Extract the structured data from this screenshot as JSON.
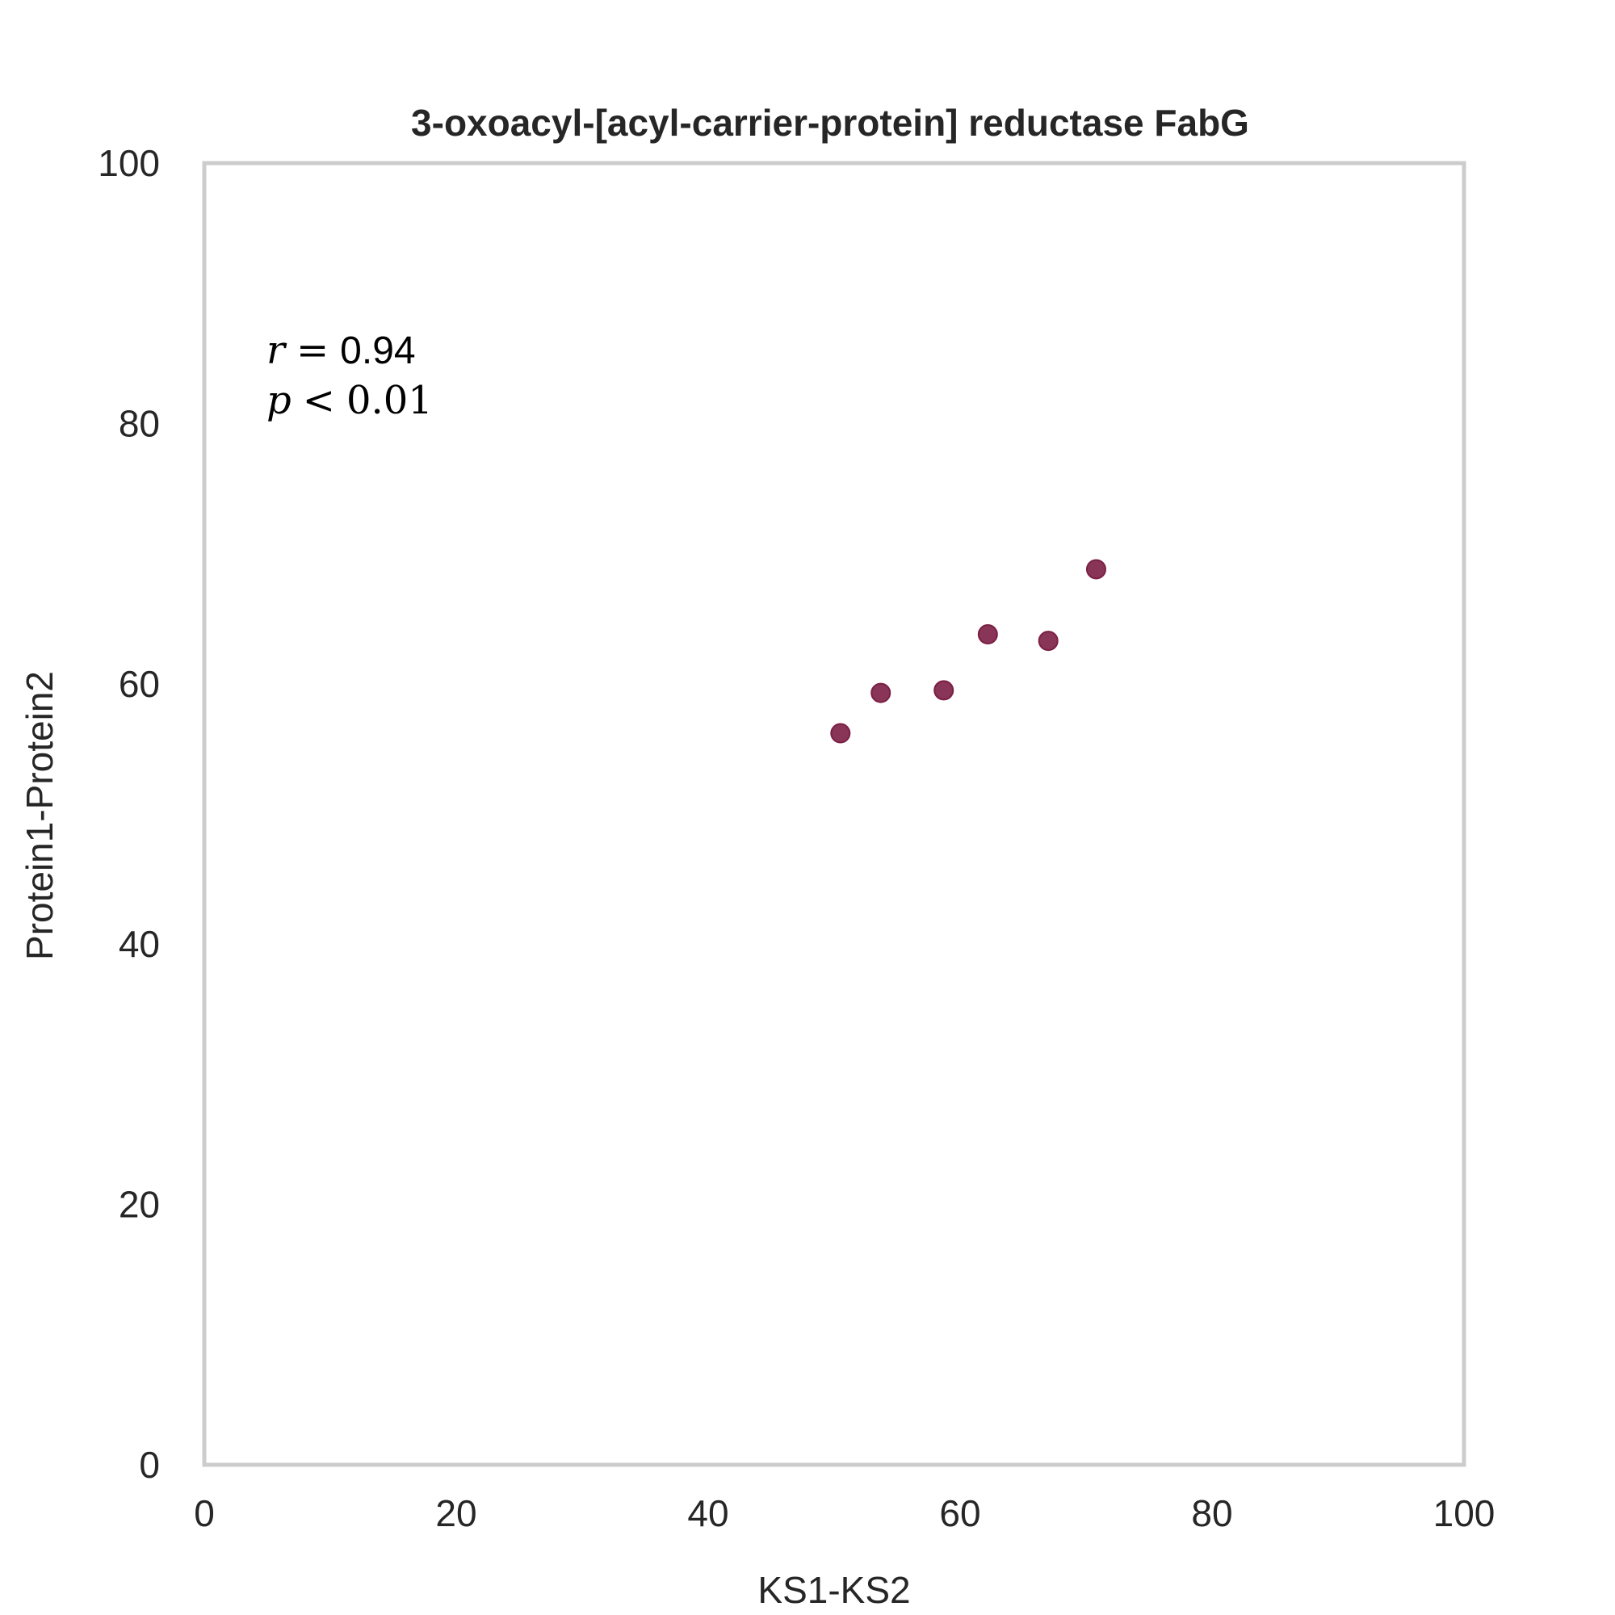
{
  "chart_data": {
    "type": "scatter",
    "title": "3-oxoacyl-[acyl-carrier-protein] reductase FabG",
    "xlabel": "KS1-KS2",
    "ylabel": "Protein1-Protein2",
    "xlim": [
      0,
      100
    ],
    "ylim": [
      0,
      100
    ],
    "xticks": [
      "0",
      "20",
      "40",
      "60",
      "80",
      "100"
    ],
    "yticks": [
      "0",
      "20",
      "40",
      "60",
      "80",
      "100"
    ],
    "grid": false,
    "point_color": "#7b1f45",
    "frame_color": "#cccccc",
    "points": [
      {
        "x": 50.5,
        "y": 56.2
      },
      {
        "x": 53.7,
        "y": 59.3
      },
      {
        "x": 58.7,
        "y": 59.5
      },
      {
        "x": 62.2,
        "y": 63.8
      },
      {
        "x": 67.0,
        "y": 63.3
      },
      {
        "x": 70.8,
        "y": 68.8
      }
    ],
    "annotations": {
      "r_symbol": "r",
      "r_eq": "=",
      "r_value": "0.94",
      "p_symbol": "p",
      "p_lt": "<",
      "p_value": "0.01"
    }
  }
}
